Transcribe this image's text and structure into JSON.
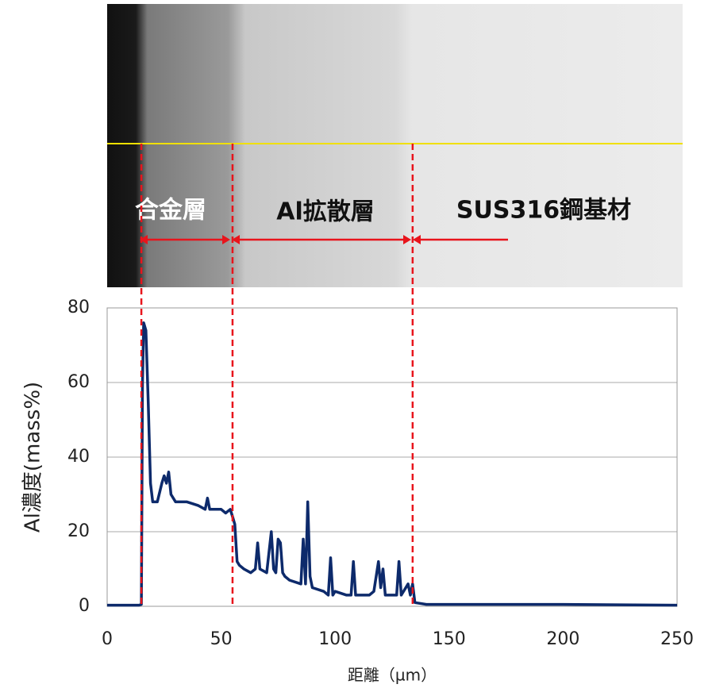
{
  "chart_data": {
    "type": "line",
    "y_label": "Al濃度(mass%)",
    "x_label": "距離（µm）",
    "annotations": [
      "合金層",
      "Al拡散層",
      "SUS316鋼基材"
    ],
    "reference_lines": [
      15,
      55,
      134
    ],
    "xlim": [
      0,
      250
    ],
    "xticks": [
      0,
      50,
      100,
      150,
      200,
      250
    ],
    "ylim": [
      0,
      80
    ],
    "yticks": [
      0,
      20,
      40,
      60,
      80
    ],
    "grid": true,
    "series": [
      {
        "color": "#0d2a6b",
        "x": [
          0,
          14,
          15,
          15.5,
          16,
          17,
          18,
          19,
          20,
          22,
          24,
          25,
          26,
          27,
          28,
          30,
          35,
          40,
          43,
          44,
          45,
          50,
          52,
          54,
          55,
          56,
          57,
          58,
          60,
          63,
          65,
          66,
          67,
          70,
          72,
          73,
          74,
          75,
          76,
          77,
          78,
          80,
          85,
          86,
          87,
          88,
          89,
          90,
          95,
          97,
          98,
          99,
          100,
          105,
          107,
          108,
          109,
          110,
          115,
          117,
          119,
          120,
          121,
          122,
          125,
          127,
          128,
          129,
          130,
          132,
          133,
          134,
          135,
          140,
          150,
          200,
          250
        ],
        "values": [
          0.3,
          0.3,
          0.5,
          60,
          76,
          74,
          55,
          33,
          28,
          28,
          33,
          35,
          33,
          36,
          30,
          28,
          28,
          27,
          26,
          29,
          26,
          26,
          25,
          26,
          24,
          22,
          12,
          11,
          10,
          9,
          10,
          17,
          10,
          9,
          20,
          10,
          9,
          18,
          17,
          9,
          8,
          7,
          6,
          18,
          6,
          28,
          8,
          5,
          4,
          3,
          13,
          3,
          4,
          3,
          3,
          12,
          3,
          3,
          3,
          4,
          12,
          5,
          10,
          3,
          3,
          3,
          12,
          3,
          4,
          6,
          3,
          6,
          1,
          0.5,
          0.5,
          0.5,
          0.3
        ]
      }
    ]
  }
}
